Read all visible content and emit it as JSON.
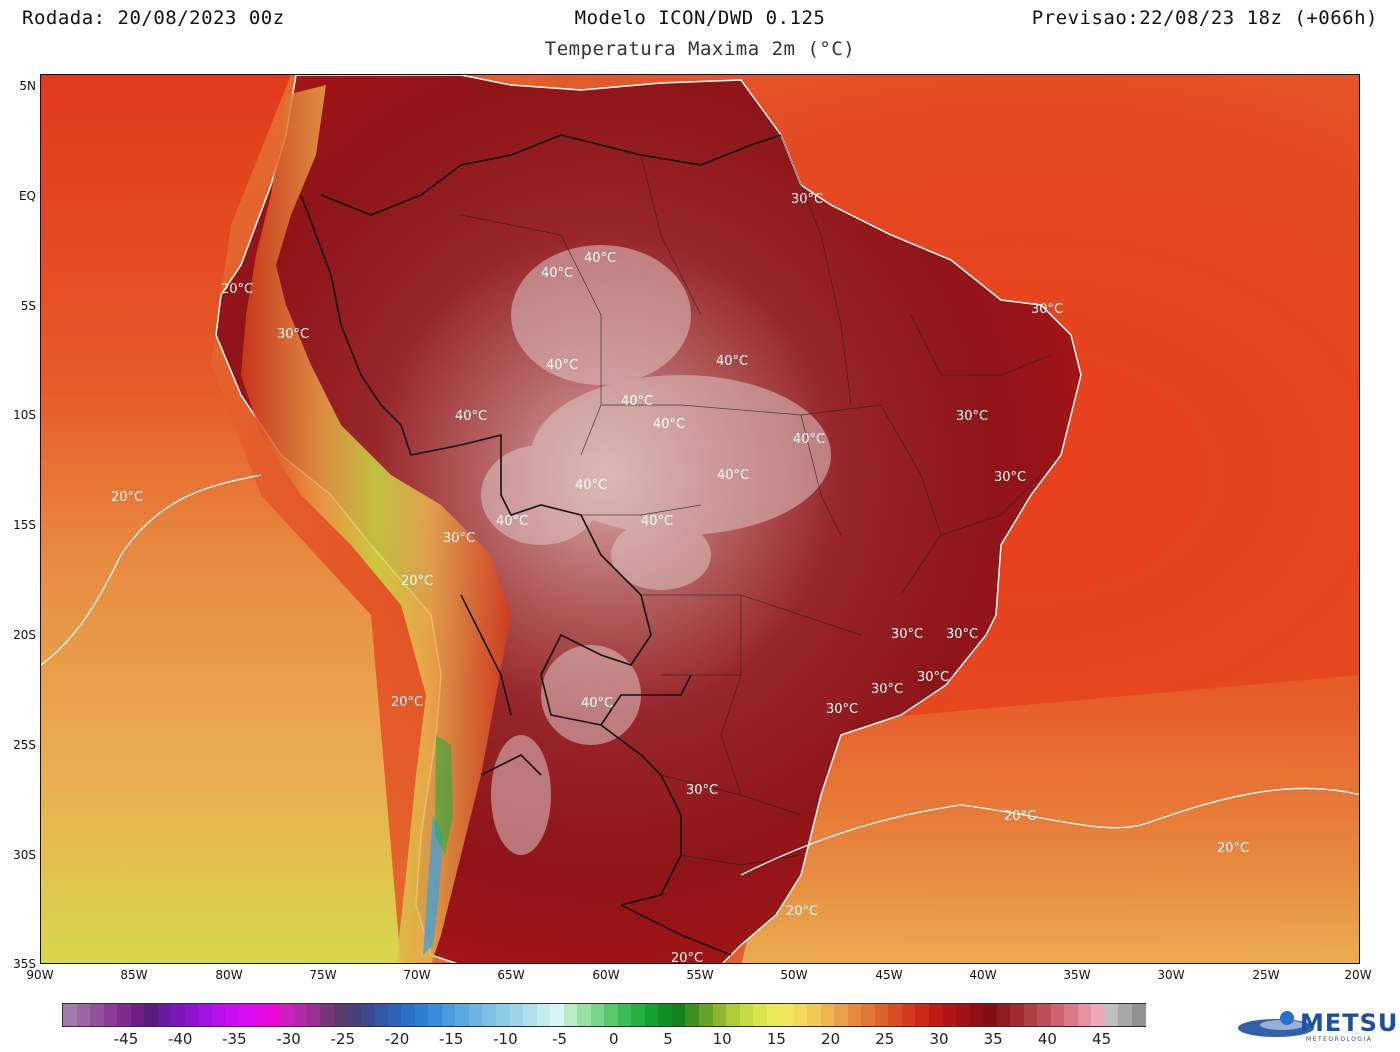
{
  "header": {
    "run": "Rodada: 20/08/2023 00z",
    "model": "Modelo ICON/DWD 0.125",
    "variable": "Temperatura Maxima 2m (°C)",
    "forecast": "Previsao:22/08/23 18z (+066h)"
  },
  "map": {
    "lat_labels": [
      "5N",
      "EQ",
      "5S",
      "10S",
      "15S",
      "20S",
      "25S",
      "30S",
      "35S"
    ],
    "lon_labels": [
      "90W",
      "85W",
      "80W",
      "75W",
      "70W",
      "65W",
      "60W",
      "55W",
      "50W",
      "45W",
      "40W",
      "35W",
      "30W",
      "25W",
      "20W"
    ],
    "contour_labels": [
      "40°C",
      "40°C",
      "40°C",
      "40°C",
      "40°C",
      "40°C",
      "40°C",
      "40°C",
      "40°C",
      "40°C",
      "40°C",
      "40°C",
      "40°C",
      "30°C",
      "30°C",
      "30°C",
      "30°C",
      "30°C",
      "30°C",
      "30°C",
      "30°C",
      "30°C",
      "30°C",
      "30°C",
      "30°C",
      "20°C",
      "20°C",
      "20°C",
      "20°C",
      "20°C",
      "20°C",
      "20°C",
      "20°C"
    ]
  },
  "colorbar": {
    "labels": [
      "-45",
      "-40",
      "-35",
      "-30",
      "-25",
      "-20",
      "-15",
      "-10",
      "-5",
      "0",
      "5",
      "10",
      "15",
      "20",
      "25",
      "30",
      "35",
      "40",
      "45"
    ],
    "colors": [
      "#a07aa8",
      "#9b64a3",
      "#93509c",
      "#8a3c96",
      "#7e2a8e",
      "#6f1e86",
      "#5a1a7e",
      "#6a1aa0",
      "#7a17b8",
      "#8c14cc",
      "#a012de",
      "#b510e8",
      "#c80ef0",
      "#d80cf2",
      "#e30ae8",
      "#ea0ad4",
      "#d01ebe",
      "#b428a8",
      "#982f92",
      "#7a347c",
      "#5c3a6a",
      "#48407a",
      "#3c4a8e",
      "#3456a4",
      "#2c62b8",
      "#2a70c8",
      "#2c7ed4",
      "#3a8cda",
      "#4a9ade",
      "#5ca8e0",
      "#6cb4e2",
      "#7cc0e4",
      "#8ccce6",
      "#9cd6e8",
      "#aee0ea",
      "#c2ecf0",
      "#d6f6f6",
      "#b8ecc4",
      "#98e0a4",
      "#78d488",
      "#58c86c",
      "#3cbc54",
      "#26ae40",
      "#14a030",
      "#0c9024",
      "#12801c",
      "#3c9020",
      "#64a428",
      "#8cb830",
      "#aecc3a",
      "#c8da44",
      "#dce44c",
      "#eaea54",
      "#f2e45a",
      "#f4d85a",
      "#f2c858",
      "#eeb452",
      "#e89e4a",
      "#e48a40",
      "#e07636",
      "#dc622c",
      "#d84e24",
      "#d43a1c",
      "#cc2818",
      "#c01c16",
      "#b01414",
      "#a01014",
      "#900e14",
      "#801016",
      "#901c22",
      "#a02a32",
      "#b03c44",
      "#c04e58",
      "#ce6470",
      "#da7a88",
      "#e490a0",
      "#eca8b4",
      "#c0c0c0",
      "#a8a8a8",
      "#909090"
    ],
    "tick_values": [
      -45,
      -40,
      -35,
      -30,
      -25,
      -20,
      -15,
      -10,
      -5,
      0,
      5,
      10,
      15,
      20,
      25,
      30,
      35,
      40,
      45
    ]
  },
  "logo": {
    "name": "METSUL",
    "sub": "METEOROLOGIA",
    "color": "#1c4fa0"
  }
}
